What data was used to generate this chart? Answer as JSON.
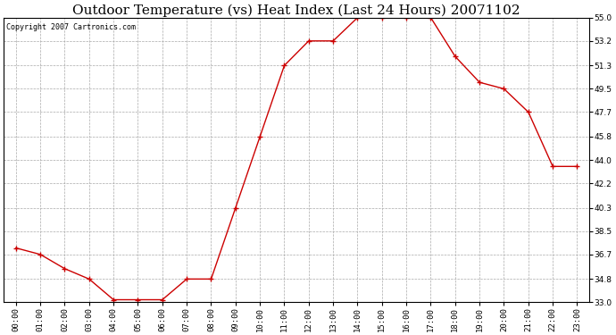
{
  "title": "Outdoor Temperature (vs) Heat Index (Last 24 Hours) 20071102",
  "copyright": "Copyright 2007 Cartronics.com",
  "x_labels": [
    "00:00",
    "01:00",
    "02:00",
    "03:00",
    "04:00",
    "05:00",
    "06:00",
    "07:00",
    "08:00",
    "09:00",
    "10:00",
    "11:00",
    "12:00",
    "13:00",
    "14:00",
    "15:00",
    "16:00",
    "17:00",
    "18:00",
    "19:00",
    "20:00",
    "21:00",
    "22:00",
    "23:00"
  ],
  "y_values": [
    37.2,
    36.7,
    35.6,
    34.8,
    33.2,
    33.2,
    33.2,
    34.8,
    34.8,
    40.3,
    45.8,
    51.3,
    53.2,
    53.2,
    55.0,
    55.0,
    55.0,
    55.0,
    52.0,
    50.0,
    49.5,
    47.7,
    43.5,
    43.5
  ],
  "line_color": "#cc0000",
  "marker": "+",
  "marker_size": 4,
  "marker_color": "#cc0000",
  "bg_color": "#ffffff",
  "grid_color": "#aaaaaa",
  "grid_linestyle": "--",
  "ylim_min": 33.0,
  "ylim_max": 55.0,
  "yticks": [
    33.0,
    34.8,
    36.7,
    38.5,
    40.3,
    42.2,
    44.0,
    45.8,
    47.7,
    49.5,
    51.3,
    53.2,
    55.0
  ],
  "title_fontsize": 11,
  "tick_fontsize": 6.5,
  "copyright_fontsize": 6
}
